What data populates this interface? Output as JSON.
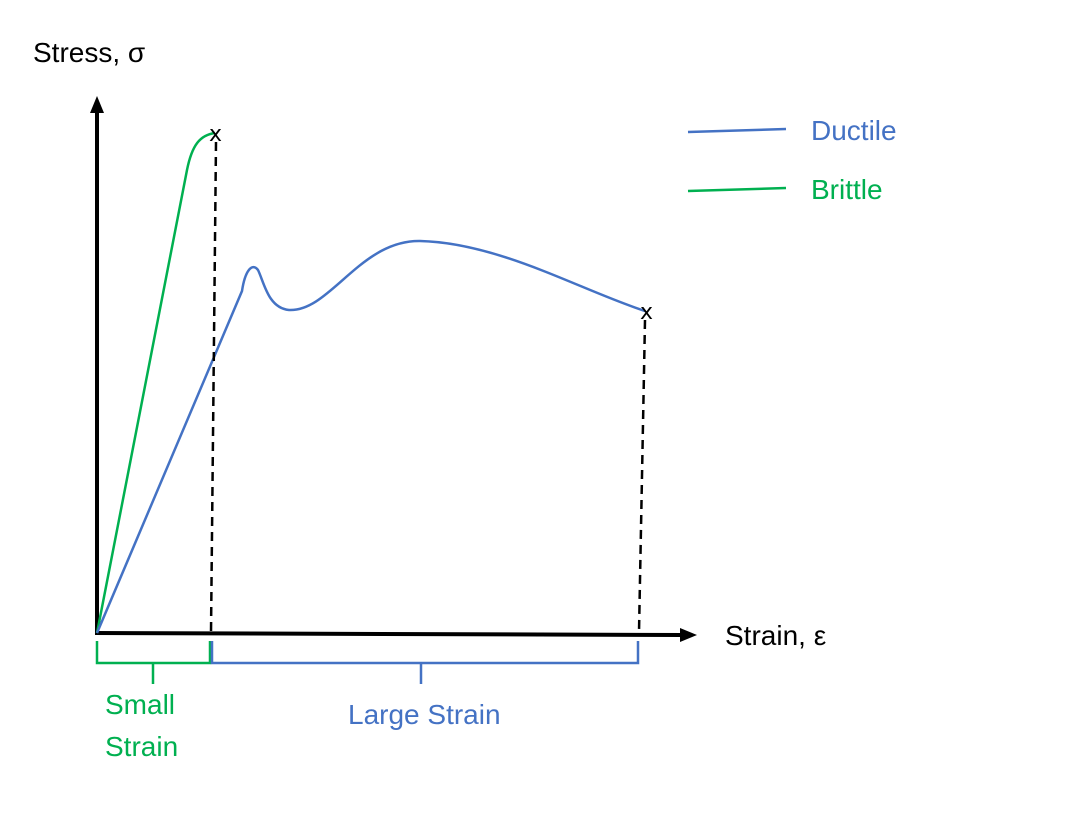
{
  "axes": {
    "y_label": "Stress, σ",
    "x_label": "Strain, ε"
  },
  "legend": {
    "items": [
      {
        "label": "Ductile",
        "color": "#4472C4"
      },
      {
        "label": "Brittle",
        "color": "#00B050"
      }
    ]
  },
  "fracture_marker": "x",
  "brackets": {
    "small": {
      "line1": "Small",
      "line2": "Strain",
      "color": "#00B050"
    },
    "large": {
      "label": "Large Strain",
      "color": "#4472C4"
    }
  },
  "colors": {
    "axis": "#000000",
    "ductile": "#4472C4",
    "brittle": "#00B050"
  }
}
